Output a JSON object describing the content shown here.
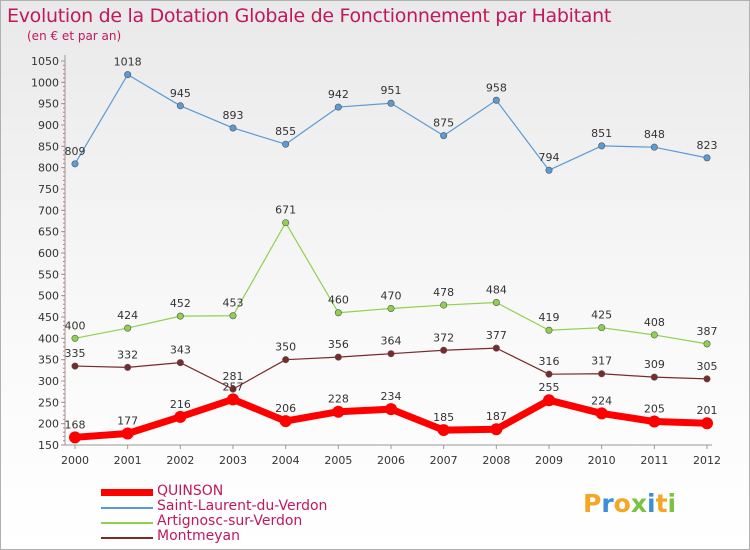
{
  "title": "Evolution de la Dotation Globale de Fonctionnement par Habitant",
  "subtitle": "(en € et par an)",
  "brand": "Proxiti",
  "chart_data": {
    "type": "line",
    "x": [
      "2000",
      "2001",
      "2002",
      "2003",
      "2004",
      "2005",
      "2006",
      "2007",
      "2008",
      "2009",
      "2010",
      "2011",
      "2012"
    ],
    "ylim": [
      150,
      1050
    ],
    "yticks": [
      150,
      200,
      250,
      300,
      350,
      400,
      450,
      500,
      550,
      600,
      650,
      700,
      750,
      800,
      850,
      900,
      950,
      1000,
      1050
    ],
    "grid": false,
    "legend_position": "bottom-left",
    "series": [
      {
        "name": "QUINSON",
        "color": "#ff0000",
        "values": [
          168,
          177,
          216,
          257,
          206,
          228,
          234,
          185,
          187,
          255,
          224,
          205,
          201
        ]
      },
      {
        "name": "Saint-Laurent-du-Verdon",
        "color": "#5b9bd5",
        "values": [
          809,
          1018,
          945,
          893,
          855,
          942,
          951,
          875,
          958,
          794,
          851,
          848,
          823
        ]
      },
      {
        "name": "Artignosc-sur-Verdon",
        "color": "#8fd14f",
        "values": [
          400,
          424,
          452,
          453,
          671,
          460,
          470,
          478,
          484,
          419,
          425,
          408,
          387
        ]
      },
      {
        "name": "Montmeyan",
        "color": "#7b2a2a",
        "values": [
          335,
          332,
          343,
          281,
          350,
          356,
          364,
          372,
          377,
          316,
          317,
          309,
          305
        ]
      }
    ]
  }
}
